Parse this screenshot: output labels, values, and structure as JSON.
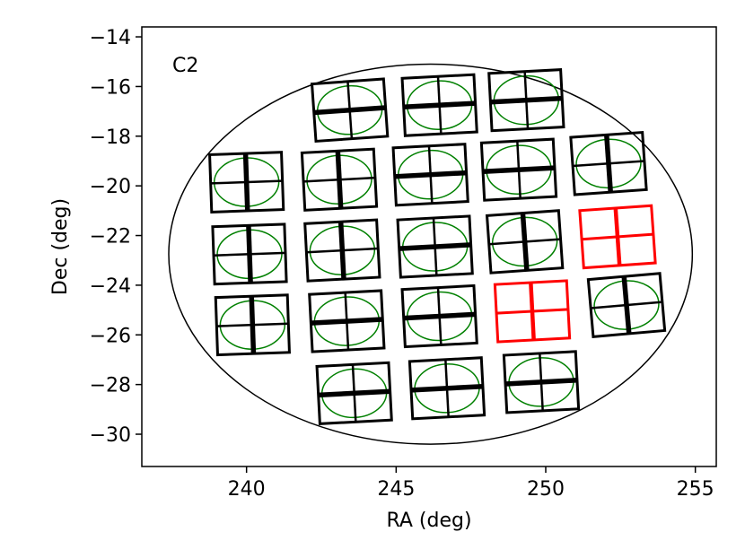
{
  "chart_data": {
    "type": "scatter",
    "title": "",
    "panel_label": "C2",
    "xlabel": "RA (deg)",
    "ylabel": "Dec (deg)",
    "xlim": [
      236.5,
      255.7
    ],
    "ylim": [
      -31.3,
      -13.6
    ],
    "xticks": [
      240,
      245,
      250,
      255
    ],
    "xtick_labels": [
      "240",
      "245",
      "250",
      "255"
    ],
    "yticks": [
      -14,
      -16,
      -18,
      -20,
      -22,
      -24,
      -26,
      -28,
      -30
    ],
    "ytick_labels": [
      "−14",
      "−16",
      "−18",
      "−20",
      "−22",
      "−24",
      "−26",
      "−28",
      "−30"
    ],
    "grid": false,
    "field_of_view": {
      "center_ra": 246.15,
      "center_dec": -22.75,
      "ra_radius": 8.75,
      "dec_radius": 7.65,
      "color": "#000000"
    },
    "colors": {
      "normal": "#000000",
      "flagged": "#ff0000",
      "ellipse": "#008000"
    },
    "tiles": [
      {
        "ra": 243.45,
        "dec": -16.95,
        "angle": 4,
        "thick": "h",
        "status": "normal"
      },
      {
        "ra": 246.45,
        "dec": -16.75,
        "angle": 3,
        "thick": "h",
        "status": "normal"
      },
      {
        "ra": 249.35,
        "dec": -16.55,
        "angle": 3,
        "thick": "h",
        "status": "normal"
      },
      {
        "ra": 240.0,
        "dec": -19.85,
        "angle": 2,
        "thick": "v",
        "status": "normal"
      },
      {
        "ra": 243.1,
        "dec": -19.75,
        "angle": 3,
        "thick": "v",
        "status": "normal"
      },
      {
        "ra": 246.15,
        "dec": -19.55,
        "angle": 3,
        "thick": "h",
        "status": "normal"
      },
      {
        "ra": 249.1,
        "dec": -19.35,
        "angle": 3,
        "thick": "h",
        "status": "normal"
      },
      {
        "ra": 252.1,
        "dec": -19.1,
        "angle": 4,
        "thick": "v",
        "status": "normal"
      },
      {
        "ra": 240.1,
        "dec": -22.75,
        "angle": 2,
        "thick": "v",
        "status": "normal"
      },
      {
        "ra": 243.2,
        "dec": -22.6,
        "angle": 3,
        "thick": "v",
        "status": "normal"
      },
      {
        "ra": 246.3,
        "dec": -22.45,
        "angle": 3,
        "thick": "h",
        "status": "normal"
      },
      {
        "ra": 249.3,
        "dec": -22.25,
        "angle": 4,
        "thick": "v",
        "status": "normal"
      },
      {
        "ra": 252.4,
        "dec": -22.05,
        "angle": 4,
        "thick": "v",
        "status": "flagged"
      },
      {
        "ra": 240.2,
        "dec": -25.6,
        "angle": 2,
        "thick": "v",
        "status": "normal"
      },
      {
        "ra": 243.35,
        "dec": -25.45,
        "angle": 3,
        "thick": "h",
        "status": "normal"
      },
      {
        "ra": 246.45,
        "dec": -25.25,
        "angle": 3,
        "thick": "h",
        "status": "normal"
      },
      {
        "ra": 249.55,
        "dec": -25.05,
        "angle": 3,
        "thick": "v",
        "status": "flagged"
      },
      {
        "ra": 252.7,
        "dec": -24.8,
        "angle": 5,
        "thick": "v",
        "status": "normal"
      },
      {
        "ra": 243.6,
        "dec": -28.35,
        "angle": 3,
        "thick": "h",
        "status": "normal"
      },
      {
        "ra": 246.7,
        "dec": -28.15,
        "angle": 3,
        "thick": "h",
        "status": "normal"
      },
      {
        "ra": 249.85,
        "dec": -27.9,
        "angle": 3,
        "thick": "h",
        "status": "normal"
      }
    ]
  }
}
